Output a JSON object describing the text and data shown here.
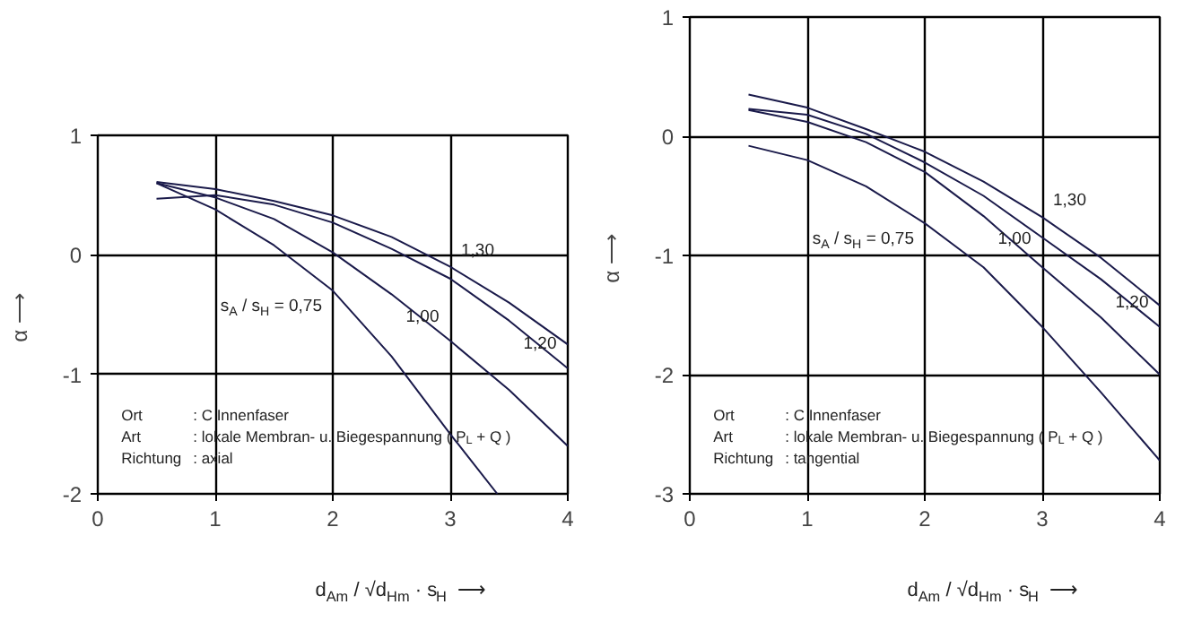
{
  "chart_data": [
    {
      "type": "line",
      "xlabel": "d$_{Am}$ / √d$_{Hm}$ · s$_{H}$  ⟶",
      "ylabel": "α  ⟶",
      "xlim": [
        0,
        4
      ],
      "ylim": [
        -2,
        1
      ],
      "xticks": [
        0,
        1,
        2,
        3,
        4
      ],
      "yticks": [
        -2,
        -1,
        0,
        1
      ],
      "grid": true,
      "marker": "none",
      "line_style": "solid",
      "x": [
        0.5,
        1,
        1.5,
        2,
        2.5,
        3,
        3.5,
        4
      ],
      "series": [
        {
          "name": "1,30",
          "color": "#1a1a4a",
          "values": [
            0.61,
            0.55,
            0.45,
            0.33,
            0.15,
            -0.1,
            -0.4,
            -0.75
          ]
        },
        {
          "name": "1,20",
          "color": "#1a1a4a",
          "values": [
            0.47,
            0.5,
            0.42,
            0.27,
            0.05,
            -0.2,
            -0.55,
            -0.95
          ]
        },
        {
          "name": "1,00",
          "color": "#1a1a4a",
          "values": [
            0.6,
            0.48,
            0.3,
            0.02,
            -0.33,
            -0.72,
            -1.13,
            -1.6
          ]
        },
        {
          "name": "s$_{A}$ / s$_{H}$ = 0,75",
          "color": "#1a1a4a",
          "x": [
            0.5,
            1,
            1.5,
            2,
            2.5,
            3,
            3.4
          ],
          "values": [
            0.6,
            0.38,
            0.08,
            -0.3,
            -0.85,
            -1.5,
            -2
          ]
        }
      ],
      "annotations": [
        "Ort : C Innenfaser",
        "Art : lokale Membran- u. Biegespannung ( P$_{L}$ + Q )",
        "Richtung : axial"
      ]
    },
    {
      "type": "line",
      "xlabel": "d$_{Am}$ / √d$_{Hm}$ · s$_{H}$  ⟶",
      "ylabel": "α  ⟶",
      "xlim": [
        0,
        4
      ],
      "ylim": [
        -3,
        1
      ],
      "xticks": [
        0,
        1,
        2,
        3,
        4
      ],
      "yticks": [
        -3,
        -2,
        -1,
        0,
        1
      ],
      "grid": true,
      "marker": "none",
      "line_style": "solid",
      "x": [
        0.5,
        1,
        1.5,
        2,
        2.5,
        3,
        3.5,
        4
      ],
      "series": [
        {
          "name": "1,30",
          "color": "#1a1a4a",
          "values": [
            0.35,
            0.24,
            0.06,
            -0.13,
            -0.38,
            -0.68,
            -1.02,
            -1.42
          ]
        },
        {
          "name": "1,20",
          "color": "#1a1a4a",
          "values": [
            0.23,
            0.18,
            0.02,
            -0.22,
            -0.5,
            -0.85,
            -1.2,
            -1.6
          ]
        },
        {
          "name": "1,00",
          "color": "#1a1a4a",
          "values": [
            0.22,
            0.12,
            -0.05,
            -0.3,
            -0.67,
            -1.1,
            -1.52,
            -2.0
          ]
        },
        {
          "name": "s$_{A}$ / s$_{H}$ = 0,75",
          "color": "#1a1a4a",
          "values": [
            -0.08,
            -0.2,
            -0.42,
            -0.73,
            -1.1,
            -1.6,
            -2.15,
            -2.72
          ]
        }
      ],
      "annotations": [
        "Ort : C Innenfaser",
        "Art : lokale Membran- u. Biegespannung ( P$_{L}$ + Q )",
        "Richtung : tangential"
      ]
    }
  ]
}
